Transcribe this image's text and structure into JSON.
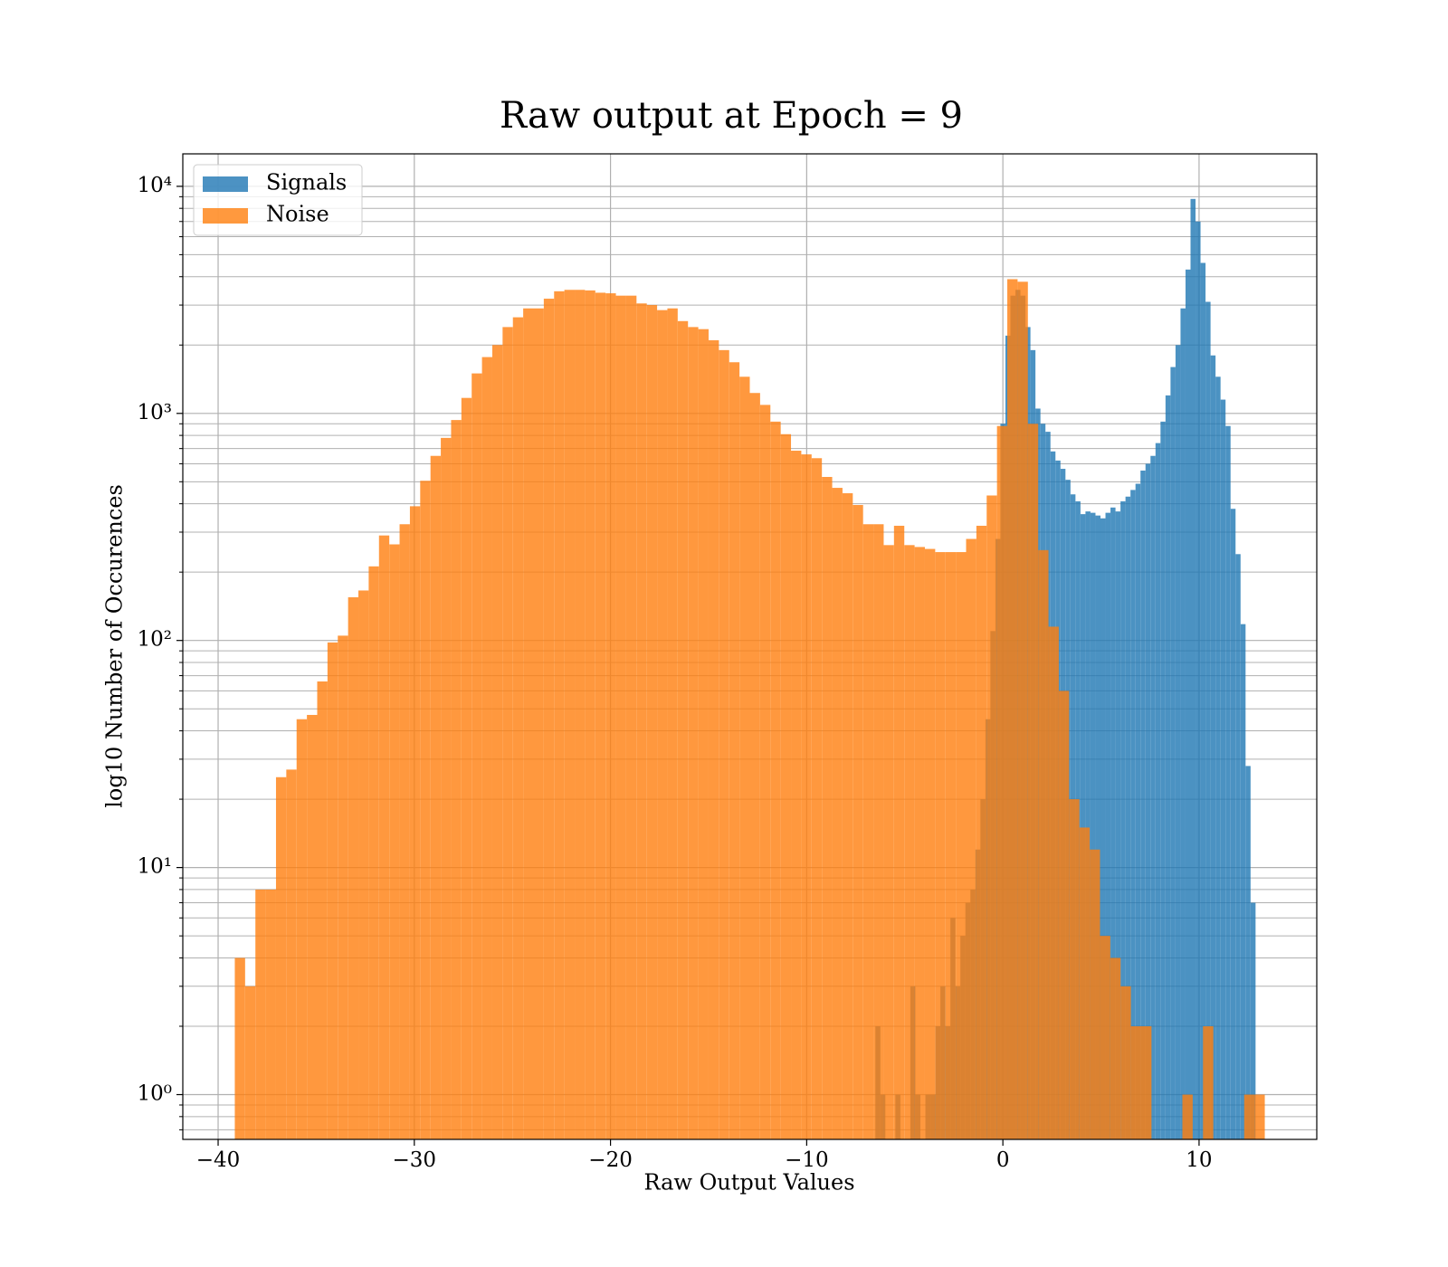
{
  "chart_data": {
    "type": "histogram",
    "title": "Raw output at Epoch = 9",
    "x_label": "Raw Output Values",
    "y_label": "log10 Number of Occurences",
    "log_y": true,
    "grid": true,
    "legend": "upper left",
    "opacity": 0.8,
    "xlim": [
      -41.8,
      16.0
    ],
    "xticks": [
      {
        "value": -40,
        "label": "−40"
      },
      {
        "value": -30,
        "label": "−30"
      },
      {
        "value": -20,
        "label": "−20"
      },
      {
        "value": -10,
        "label": "−10"
      },
      0,
      10
    ],
    "ylim": [
      0.635,
      13900
    ],
    "yticks": [
      {
        "value": 1,
        "label": "10⁰"
      },
      {
        "value": 10,
        "label": "10¹"
      },
      {
        "value": 100,
        "label": "10²"
      },
      {
        "value": 1000,
        "label": "10³"
      },
      {
        "value": 10000,
        "label": "10⁴"
      }
    ],
    "yminorticks": [
      0.7,
      0.8,
      0.9,
      2,
      3,
      4,
      5,
      6,
      7,
      8,
      9,
      20,
      30,
      40,
      50,
      60,
      70,
      80,
      90,
      200,
      300,
      400,
      500,
      600,
      700,
      800,
      900,
      2000,
      3000,
      4000,
      5000,
      6000,
      7000,
      8000,
      9000
    ],
    "series": [
      {
        "name": "Signals",
        "color": "#1f77b4",
        "bins": [
          -6.5,
          -6.245,
          -5.99,
          -5.735,
          -5.48,
          -5.225,
          -4.97,
          -4.715,
          -4.46,
          -4.205,
          -3.95,
          -3.695,
          -3.44,
          -3.185,
          -2.93,
          -2.675,
          -2.42,
          -2.165,
          -1.91,
          -1.655,
          -1.4,
          -1.145,
          -0.89,
          -0.635,
          -0.38,
          -0.125,
          0.13,
          0.385,
          0.64,
          0.895,
          1.15,
          1.405,
          1.66,
          1.915,
          2.17,
          2.425,
          2.68,
          2.935,
          3.19,
          3.445,
          3.7,
          3.955,
          4.21,
          4.465,
          4.72,
          4.975,
          5.23,
          5.485,
          5.74,
          5.995,
          6.25,
          6.505,
          6.76,
          7.015,
          7.27,
          7.525,
          7.78,
          8.035,
          8.29,
          8.545,
          8.8,
          9.055,
          9.31,
          9.565,
          9.82,
          10.075,
          10.33,
          10.585,
          10.84,
          11.095,
          11.35,
          11.605,
          11.86,
          12.115,
          12.37,
          12.625,
          12.88
        ],
        "values": [
          2,
          1,
          0,
          0,
          1,
          0,
          0,
          3,
          1,
          0,
          1,
          1,
          2,
          3,
          2,
          6,
          3,
          5,
          7,
          8,
          12,
          20,
          45,
          110,
          280,
          900,
          2200,
          3300,
          3500,
          3300,
          2400,
          1900,
          1050,
          900,
          830,
          680,
          620,
          570,
          510,
          440,
          410,
          360,
          370,
          365,
          355,
          345,
          365,
          385,
          370,
          410,
          430,
          460,
          490,
          560,
          600,
          650,
          740,
          920,
          1200,
          1600,
          2000,
          2900,
          4300,
          8800,
          7000,
          4600,
          3100,
          1800,
          1450,
          1150,
          880,
          380,
          240,
          118,
          28,
          7
        ]
      },
      {
        "name": "Noise",
        "color": "#ff7f0e",
        "bins": [
          -39.15,
          -38.625,
          -38.1,
          -37.575,
          -37.05,
          -36.525,
          -36,
          -35.475,
          -34.95,
          -34.425,
          -33.9,
          -33.375,
          -32.85,
          -32.325,
          -31.8,
          -31.275,
          -30.75,
          -30.225,
          -29.7,
          -29.175,
          -28.65,
          -28.125,
          -27.6,
          -27.075,
          -26.55,
          -26.025,
          -25.5,
          -24.975,
          -24.45,
          -23.925,
          -23.4,
          -22.875,
          -22.35,
          -21.825,
          -21.3,
          -20.775,
          -20.25,
          -19.725,
          -19.2,
          -18.675,
          -18.15,
          -17.625,
          -17.1,
          -16.575,
          -16.05,
          -15.525,
          -15,
          -14.475,
          -13.95,
          -13.425,
          -12.9,
          -12.375,
          -11.85,
          -11.325,
          -10.8,
          -10.275,
          -9.75,
          -9.225,
          -8.7,
          -8.175,
          -7.65,
          -7.125,
          -6.6,
          -6.075,
          -5.55,
          -5.025,
          -4.5,
          -3.975,
          -3.45,
          -2.925,
          -2.4,
          -1.875,
          -1.35,
          -0.825,
          -0.3,
          0.225,
          0.75,
          1.275,
          1.8,
          2.325,
          2.85,
          3.375,
          3.9,
          4.425,
          4.95,
          5.475,
          6,
          6.525,
          7.05,
          7.575,
          8.1,
          8.625,
          9.15,
          9.675,
          10.2,
          10.725,
          11.25,
          11.775,
          12.3,
          12.825,
          13.35
        ],
        "values": [
          4,
          3,
          8,
          8,
          25,
          27,
          45,
          47,
          66,
          98,
          105,
          155,
          166,
          212,
          290,
          265,
          325,
          390,
          505,
          650,
          780,
          935,
          1170,
          1500,
          1770,
          2000,
          2400,
          2650,
          2900,
          2900,
          3200,
          3450,
          3500,
          3500,
          3480,
          3400,
          3380,
          3300,
          3300,
          3050,
          3000,
          2850,
          2900,
          2550,
          2400,
          2350,
          2100,
          1900,
          1680,
          1450,
          1230,
          1090,
          920,
          810,
          685,
          660,
          635,
          525,
          470,
          445,
          395,
          325,
          325,
          263,
          320,
          263,
          258,
          253,
          245,
          245,
          245,
          280,
          320,
          435,
          880,
          3900,
          3800,
          900,
          250,
          115,
          60,
          20,
          15,
          12,
          5,
          4,
          3,
          2,
          2,
          0,
          0,
          0,
          1,
          0,
          2,
          0,
          0,
          0,
          1,
          1
        ]
      }
    ]
  }
}
